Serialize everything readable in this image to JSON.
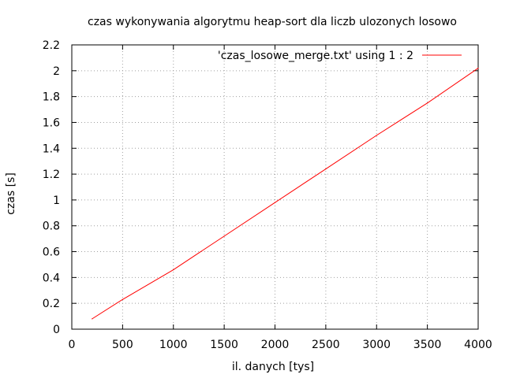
{
  "chart_data": {
    "type": "line",
    "title": "czas wykonywania algorytmu heap-sort dla liczb ulozonych losowo",
    "xlabel": "il. danych [tys]",
    "ylabel": "czas [s]",
    "xlim": [
      0,
      4000
    ],
    "ylim": [
      0,
      2.2
    ],
    "xticks": [
      0,
      500,
      1000,
      1500,
      2000,
      2500,
      3000,
      3500,
      4000
    ],
    "xtick_labels": [
      "0",
      "500",
      "1000",
      "1500",
      "2000",
      "2500",
      "3000",
      "3500",
      "4000"
    ],
    "yticks": [
      0,
      0.2,
      0.4,
      0.6,
      0.8,
      1,
      1.2,
      1.4,
      1.6,
      1.8,
      2,
      2.2
    ],
    "ytick_labels": [
      "0",
      "0.2",
      "0.4",
      "0.6",
      "0.8",
      "1",
      "1.2",
      "1.4",
      "1.6",
      "1.8",
      "2",
      "2.2"
    ],
    "grid": true,
    "legend_position": "top-right",
    "series": [
      {
        "name": "'czas_losowe_merge.txt' using 1 : 2",
        "color": "#ff0000",
        "x": [
          200,
          500,
          1000,
          1500,
          2000,
          2500,
          3000,
          3500,
          4000
        ],
        "y": [
          0.08,
          0.23,
          0.46,
          0.72,
          0.98,
          1.24,
          1.5,
          1.75,
          2.02
        ]
      }
    ]
  }
}
